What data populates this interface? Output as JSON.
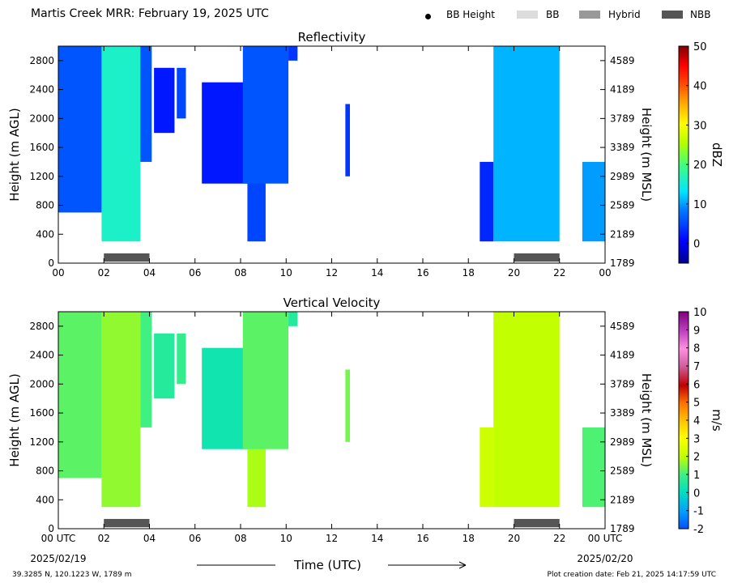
{
  "header": {
    "title": "Martis Creek MRR:  February 19, 2025 UTC",
    "legend": [
      {
        "label": "BB Height",
        "marker": "dot",
        "color": "#000000"
      },
      {
        "label": "BB",
        "marker": "swatch",
        "color": "#dcdcdc"
      },
      {
        "label": "Hybrid",
        "marker": "swatch",
        "color": "#999999"
      },
      {
        "label": "NBB",
        "marker": "swatch",
        "color": "#555555"
      }
    ]
  },
  "chart_data": [
    {
      "type": "heatmap",
      "title": "Reflectivity",
      "ylabel": "Height (m AGL)",
      "y2label": "Height (m MSL)",
      "colorbar_label": "dBZ",
      "xlim": [
        0,
        24
      ],
      "ylim": [
        0,
        3000
      ],
      "x_ticks": [
        "00",
        "02",
        "04",
        "06",
        "08",
        "10",
        "12",
        "14",
        "16",
        "18",
        "20",
        "22",
        "00"
      ],
      "y_ticks": [
        0,
        400,
        800,
        1200,
        1600,
        2000,
        2400,
        2800
      ],
      "y2_ticks": [
        "1789",
        "2189",
        "2589",
        "2989",
        "3389",
        "3789",
        "4189",
        "4589"
      ],
      "colorbar": {
        "min": -5,
        "max": 50,
        "ticks": [
          0,
          10,
          20,
          30,
          40,
          50
        ]
      },
      "echo_regions": [
        {
          "x": [
            0.0,
            1.9
          ],
          "base": 700,
          "top": 3000,
          "value": 6
        },
        {
          "x": [
            1.9,
            3.6
          ],
          "base": 300,
          "top": 3000,
          "value": 16
        },
        {
          "x": [
            3.6,
            4.1
          ],
          "base": 1400,
          "top": 3000,
          "value": 6
        },
        {
          "x": [
            4.2,
            5.1
          ],
          "base": 1800,
          "top": 2700,
          "value": 2
        },
        {
          "x": [
            5.2,
            5.6
          ],
          "base": 2000,
          "top": 2700,
          "value": 5
        },
        {
          "x": [
            6.3,
            8.3
          ],
          "base": 1100,
          "top": 2500,
          "value": 2
        },
        {
          "x": [
            8.3,
            9.1
          ],
          "base": 300,
          "top": 3000,
          "value": 5
        },
        {
          "x": [
            8.1,
            10.1
          ],
          "base": 1100,
          "top": 3000,
          "value": 6
        },
        {
          "x": [
            10.1,
            10.5
          ],
          "base": 2800,
          "top": 3000,
          "value": 4
        },
        {
          "x": [
            12.6,
            12.8
          ],
          "base": 1200,
          "top": 2200,
          "value": 4
        },
        {
          "x": [
            18.5,
            19.1
          ],
          "base": 300,
          "top": 1400,
          "value": 3
        },
        {
          "x": [
            19.1,
            22.0
          ],
          "base": 300,
          "top": 3000,
          "value": 11
        },
        {
          "x": [
            23.0,
            24.0
          ],
          "base": 300,
          "top": 1400,
          "value": 10
        }
      ],
      "bb_segments": [
        {
          "x": [
            2.0,
            4.0
          ],
          "type": "NBB"
        },
        {
          "x": [
            20.0,
            22.0
          ],
          "type": "NBB"
        }
      ]
    },
    {
      "type": "heatmap",
      "title": "Vertical Velocity",
      "ylabel": "Height (m AGL)",
      "y2label": "Height (m MSL)",
      "colorbar_label": "m/s",
      "xlim": [
        0,
        24
      ],
      "ylim": [
        0,
        3000
      ],
      "x_ticks": [
        "00 UTC",
        "02",
        "04",
        "06",
        "08",
        "10",
        "12",
        "14",
        "16",
        "18",
        "20",
        "22",
        "00 UTC"
      ],
      "x_date_left": "2025/02/19",
      "x_date_right": "2025/02/20",
      "xlabel": "Time (UTC)",
      "y_ticks": [
        0,
        400,
        800,
        1200,
        1600,
        2000,
        2400,
        2800
      ],
      "y2_ticks": [
        "1789",
        "2189",
        "2589",
        "2989",
        "3389",
        "3789",
        "4189",
        "4589"
      ],
      "colorbar": {
        "min": -2,
        "max": 10,
        "ticks": [
          -2,
          -1,
          0,
          1,
          2,
          3,
          4,
          5,
          6,
          7,
          8,
          9,
          10
        ]
      },
      "echo_regions": [
        {
          "x": [
            0.0,
            1.9
          ],
          "base": 700,
          "top": 3000,
          "value": 1.2
        },
        {
          "x": [
            1.9,
            3.6
          ],
          "base": 300,
          "top": 3000,
          "value": 1.6
        },
        {
          "x": [
            3.6,
            4.1
          ],
          "base": 1400,
          "top": 3000,
          "value": 1.0
        },
        {
          "x": [
            4.2,
            5.1
          ],
          "base": 1800,
          "top": 2700,
          "value": 0.6
        },
        {
          "x": [
            5.2,
            5.6
          ],
          "base": 2000,
          "top": 2700,
          "value": 0.8
        },
        {
          "x": [
            6.3,
            8.3
          ],
          "base": 1100,
          "top": 2500,
          "value": 0.3
        },
        {
          "x": [
            8.3,
            9.1
          ],
          "base": 300,
          "top": 3000,
          "value": 1.8
        },
        {
          "x": [
            8.1,
            10.1
          ],
          "base": 1100,
          "top": 3000,
          "value": 1.2
        },
        {
          "x": [
            10.1,
            10.5
          ],
          "base": 2800,
          "top": 3000,
          "value": 0.6
        },
        {
          "x": [
            12.6,
            12.8
          ],
          "base": 1200,
          "top": 2200,
          "value": 1.4
        },
        {
          "x": [
            18.5,
            19.1
          ],
          "base": 300,
          "top": 1400,
          "value": 2.2
        },
        {
          "x": [
            19.1,
            22.0
          ],
          "base": 300,
          "top": 3000,
          "value": 2.0
        },
        {
          "x": [
            23.0,
            24.0
          ],
          "base": 300,
          "top": 1400,
          "value": 1.1
        }
      ],
      "bb_segments": [
        {
          "x": [
            2.0,
            4.0
          ],
          "type": "NBB"
        },
        {
          "x": [
            20.0,
            22.0
          ],
          "type": "NBB"
        }
      ]
    }
  ],
  "footer": {
    "location": "39.3285 N, 120.1223 W, 1789 m",
    "creation_date": "Plot creation date: Feb 21, 2025 14:17:59 UTC"
  }
}
